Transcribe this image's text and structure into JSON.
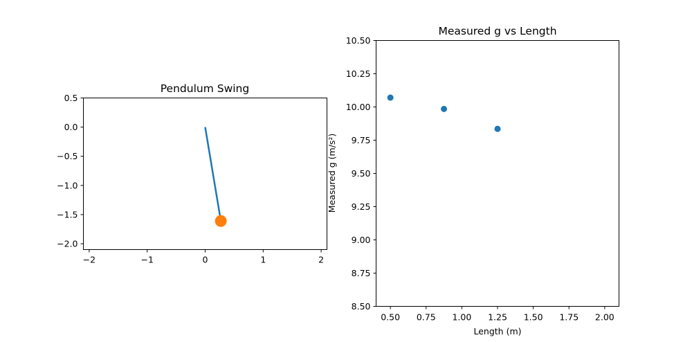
{
  "colors": {
    "rod": "#1f77b4",
    "bob": "#ff7f0e",
    "scatter": "#1f77b4",
    "axes": "#000000",
    "background": "#ffffff"
  },
  "chart_data": [
    {
      "type": "line",
      "title": "Pendulum Swing",
      "xlabel": "",
      "ylabel": "",
      "xlim": [
        -2.1,
        2.1
      ],
      "ylim": [
        -2.1,
        0.5
      ],
      "xticks": [
        -2,
        -1,
        0,
        1,
        2
      ],
      "xtick_labels": [
        "−2",
        "−1",
        "0",
        "1",
        "2"
      ],
      "yticks": [
        0.5,
        0.0,
        -0.5,
        -1.0,
        -1.5,
        -2.0
      ],
      "ytick_labels": [
        "0.5",
        "0.0",
        "−0.5",
        "−1.0",
        "−1.5",
        "−2.0"
      ],
      "grid": false,
      "series": [
        {
          "kind": "rod",
          "x": [
            0,
            0.27
          ],
          "y": [
            0,
            -1.61
          ]
        },
        {
          "kind": "bob",
          "x": [
            0.27
          ],
          "y": [
            -1.61
          ]
        }
      ]
    },
    {
      "type": "scatter",
      "title": "Measured g vs Length",
      "xlabel": "Length (m)",
      "ylabel": "Measured g (m/s²)",
      "xlim": [
        0.4,
        2.1
      ],
      "ylim": [
        8.5,
        10.5
      ],
      "xticks": [
        0.5,
        0.75,
        1.0,
        1.25,
        1.5,
        1.75,
        2.0
      ],
      "xtick_labels": [
        "0.50",
        "0.75",
        "1.00",
        "1.25",
        "1.50",
        "1.75",
        "2.00"
      ],
      "yticks": [
        10.5,
        10.25,
        10.0,
        9.75,
        9.5,
        9.25,
        9.0,
        8.75,
        8.5
      ],
      "ytick_labels": [
        "10.50",
        "10.25",
        "10.00",
        "9.75",
        "9.50",
        "9.25",
        "9.00",
        "8.75",
        "8.50"
      ],
      "grid": false,
      "series": [
        {
          "x": [
            0.5,
            0.875,
            1.25
          ],
          "y": [
            10.07,
            9.985,
            9.835
          ]
        }
      ]
    }
  ]
}
